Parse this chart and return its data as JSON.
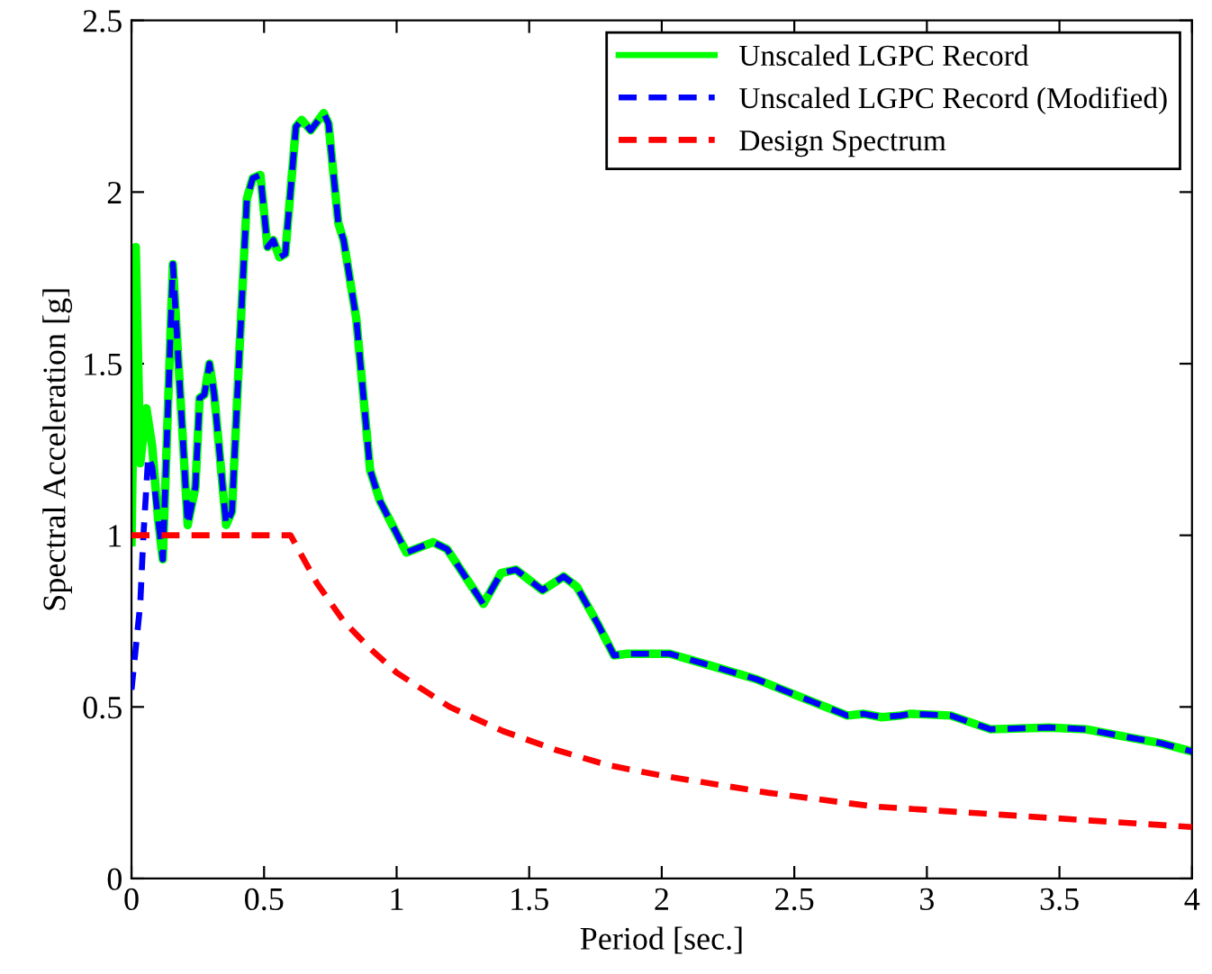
{
  "chart_data": {
    "type": "line",
    "xlabel": "Period [sec.]",
    "ylabel": "Spectral Acceleration [g]",
    "xlim": [
      0,
      4
    ],
    "ylim": [
      0,
      2.5
    ],
    "xticks": [
      0,
      0.5,
      1,
      1.5,
      2,
      2.5,
      3,
      3.5,
      4
    ],
    "yticks": [
      0,
      0.5,
      1,
      1.5,
      2,
      2.5
    ],
    "grid": false,
    "legend": "top right",
    "series": [
      {
        "name": "Unscaled LGPC Record",
        "color": "#00ff00",
        "line_style": "solid",
        "x": [
          0,
          0.016,
          0.033,
          0.056,
          0.078,
          0.1,
          0.118,
          0.156,
          0.212,
          0.241,
          0.257,
          0.275,
          0.294,
          0.312,
          0.357,
          0.379,
          0.406,
          0.435,
          0.457,
          0.486,
          0.513,
          0.535,
          0.558,
          0.58,
          0.62,
          0.642,
          0.676,
          0.725,
          0.743,
          0.78,
          0.8,
          0.848,
          0.9,
          0.937,
          1.037,
          1.137,
          1.19,
          1.327,
          1.394,
          1.45,
          1.55,
          1.63,
          1.68,
          1.76,
          1.82,
          1.87,
          2.03,
          2.23,
          2.36,
          2.52,
          2.7,
          2.76,
          2.83,
          2.9,
          2.94,
          3.09,
          3.24,
          3.46,
          3.6,
          3.77,
          3.88,
          4.0
        ],
        "values": [
          0.98,
          1.84,
          1.21,
          1.37,
          1.26,
          1.05,
          0.93,
          1.79,
          1.03,
          1.14,
          1.4,
          1.41,
          1.5,
          1.41,
          1.03,
          1.07,
          1.52,
          1.98,
          2.04,
          2.05,
          1.84,
          1.86,
          1.81,
          1.82,
          2.19,
          2.21,
          2.18,
          2.23,
          2.2,
          1.91,
          1.86,
          1.63,
          1.19,
          1.1,
          0.95,
          0.98,
          0.96,
          0.8,
          0.89,
          0.9,
          0.84,
          0.88,
          0.85,
          0.74,
          0.65,
          0.655,
          0.655,
          0.61,
          0.58,
          0.53,
          0.475,
          0.48,
          0.47,
          0.475,
          0.48,
          0.475,
          0.435,
          0.44,
          0.435,
          0.41,
          0.395,
          0.37
        ]
      },
      {
        "name": "Unscaled LGPC Record (Modified)",
        "color": "#0000ff",
        "line_style": "dashed",
        "x": [
          0,
          0.033,
          0.045,
          0.063,
          0.078,
          0.1,
          0.118,
          0.156,
          0.212,
          0.241,
          0.257,
          0.275,
          0.294,
          0.312,
          0.357,
          0.379,
          0.406,
          0.435,
          0.457,
          0.486,
          0.513,
          0.535,
          0.558,
          0.58,
          0.62,
          0.642,
          0.676,
          0.725,
          0.743,
          0.78,
          0.8,
          0.848,
          0.9,
          0.937,
          1.037,
          1.137,
          1.19,
          1.327,
          1.394,
          1.45,
          1.55,
          1.63,
          1.68,
          1.76,
          1.82,
          1.87,
          2.03,
          2.23,
          2.36,
          2.52,
          2.7,
          2.76,
          2.83,
          2.9,
          2.94,
          3.09,
          3.24,
          3.46,
          3.6,
          3.77,
          3.88,
          4.0
        ],
        "values": [
          0.55,
          0.8,
          1.0,
          1.23,
          1.2,
          1.05,
          0.93,
          1.79,
          1.03,
          1.14,
          1.4,
          1.41,
          1.5,
          1.41,
          1.03,
          1.07,
          1.52,
          1.98,
          2.04,
          2.05,
          1.84,
          1.86,
          1.81,
          1.82,
          2.19,
          2.21,
          2.18,
          2.23,
          2.2,
          1.91,
          1.86,
          1.63,
          1.19,
          1.1,
          0.95,
          0.98,
          0.96,
          0.8,
          0.89,
          0.9,
          0.84,
          0.88,
          0.85,
          0.74,
          0.65,
          0.655,
          0.655,
          0.61,
          0.58,
          0.53,
          0.475,
          0.48,
          0.47,
          0.475,
          0.48,
          0.475,
          0.435,
          0.44,
          0.435,
          0.41,
          0.395,
          0.37
        ]
      },
      {
        "name": "Design Spectrum",
        "color": "#ff0000",
        "line_style": "dashed",
        "x": [
          0,
          0.6,
          0.7,
          0.8,
          0.9,
          1.0,
          1.2,
          1.4,
          1.6,
          1.8,
          2.0,
          2.4,
          2.8,
          3.2,
          3.6,
          4.0
        ],
        "values": [
          1.0,
          1.0,
          0.86,
          0.75,
          0.67,
          0.6,
          0.5,
          0.43,
          0.375,
          0.33,
          0.3,
          0.25,
          0.21,
          0.19,
          0.17,
          0.15
        ]
      }
    ]
  }
}
